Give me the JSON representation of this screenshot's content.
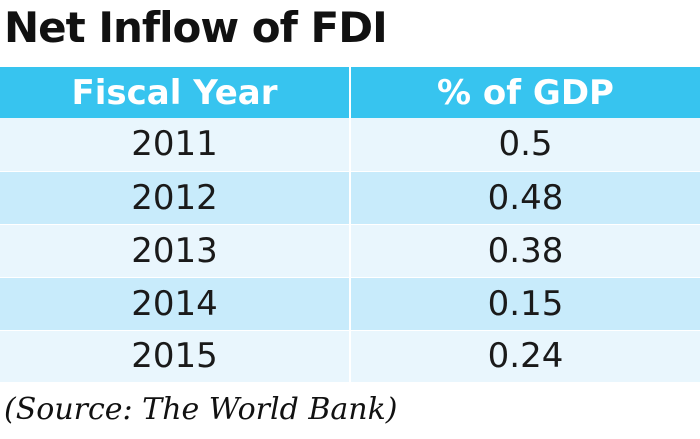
{
  "title": "Net Inflow of FDI",
  "source": "(Source: The World Bank)",
  "colors": {
    "header_bg": "#37c4ef",
    "header_text": "#ffffff",
    "row_light": "#e9f6fd",
    "row_dark": "#c8ebfb"
  },
  "chart_data": {
    "type": "table",
    "title": "Net Inflow of FDI",
    "columns": [
      "Fiscal Year",
      "% of GDP"
    ],
    "rows": [
      [
        "2011",
        "0.5"
      ],
      [
        "2012",
        "0.48"
      ],
      [
        "2013",
        "0.38"
      ],
      [
        "2014",
        "0.15"
      ],
      [
        "2015",
        "0.24"
      ]
    ],
    "source": "(Source: The World Bank)"
  }
}
